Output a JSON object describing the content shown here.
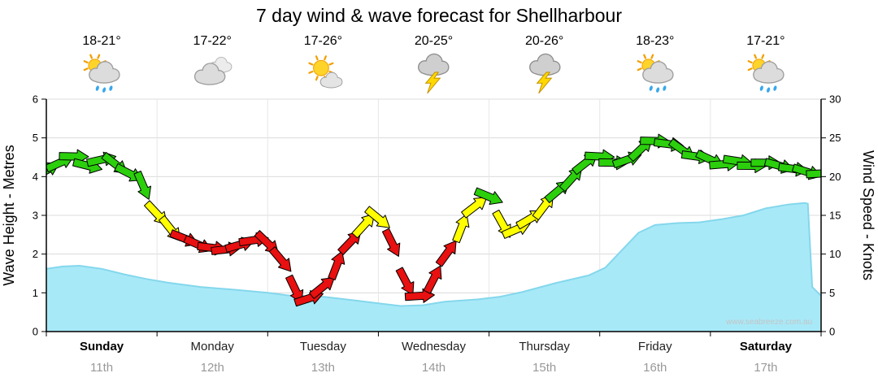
{
  "header": {
    "title": "7 day wind & wave forecast for Shellharbour"
  },
  "days": [
    {
      "temp": "18-21°",
      "icon": "sun-showers",
      "name": "Sunday",
      "date": "11th",
      "weekend": true
    },
    {
      "temp": "17-22°",
      "icon": "cloudy",
      "name": "Monday",
      "date": "12th",
      "weekend": false
    },
    {
      "temp": "17-26°",
      "icon": "sun-cloud",
      "name": "Tuesday",
      "date": "13th",
      "weekend": false
    },
    {
      "temp": "20-25°",
      "icon": "storm",
      "name": "Wednesday",
      "date": "14th",
      "weekend": false
    },
    {
      "temp": "20-26°",
      "icon": "storm",
      "name": "Thursday",
      "date": "15th",
      "weekend": false
    },
    {
      "temp": "18-23°",
      "icon": "sun-showers",
      "name": "Friday",
      "date": "16th",
      "weekend": false
    },
    {
      "temp": "17-21°",
      "icon": "sun-showers",
      "name": "Saturday",
      "date": "17th",
      "weekend": true
    }
  ],
  "watermark": "www.seabreeze.com.au",
  "chart_data": {
    "type": "mixed",
    "title": "7 day wind & wave forecast for Shellharbour",
    "x_axis": {
      "unit": "days",
      "range": [
        0,
        7
      ],
      "labels": [
        "Sunday",
        "Monday",
        "Tuesday",
        "Wednesday",
        "Thursday",
        "Friday",
        "Saturday"
      ],
      "sub_labels": [
        "11th",
        "12th",
        "13th",
        "14th",
        "15th",
        "16th",
        "17th"
      ]
    },
    "y_left": {
      "label": "Wave Height - Metres",
      "min": 0,
      "max": 6,
      "step": 1
    },
    "y_right": {
      "label": "Wind Speed - Knots",
      "min": 0,
      "max": 30,
      "step": 5
    },
    "grid": true,
    "wave_series": {
      "name": "Wave Height",
      "unit": "m",
      "type": "area",
      "color": "#a8e9f8",
      "edge_color": "#84d7ec",
      "points": [
        [
          0,
          1.62
        ],
        [
          0.15,
          1.68
        ],
        [
          0.3,
          1.7
        ],
        [
          0.5,
          1.62
        ],
        [
          0.7,
          1.48
        ],
        [
          0.9,
          1.36
        ],
        [
          1.1,
          1.26
        ],
        [
          1.4,
          1.15
        ],
        [
          1.7,
          1.08
        ],
        [
          2.0,
          1.0
        ],
        [
          2.2,
          0.93
        ],
        [
          2.5,
          0.9
        ],
        [
          2.8,
          0.8
        ],
        [
          3.0,
          0.73
        ],
        [
          3.2,
          0.66
        ],
        [
          3.4,
          0.68
        ],
        [
          3.6,
          0.77
        ],
        [
          3.9,
          0.83
        ],
        [
          4.1,
          0.9
        ],
        [
          4.3,
          1.02
        ],
        [
          4.6,
          1.25
        ],
        [
          4.9,
          1.45
        ],
        [
          5.05,
          1.65
        ],
        [
          5.2,
          2.1
        ],
        [
          5.35,
          2.55
        ],
        [
          5.5,
          2.75
        ],
        [
          5.7,
          2.8
        ],
        [
          5.9,
          2.82
        ],
        [
          6.1,
          2.9
        ],
        [
          6.3,
          3.0
        ],
        [
          6.5,
          3.18
        ],
        [
          6.7,
          3.28
        ],
        [
          6.85,
          3.32
        ],
        [
          6.88,
          3.3
        ],
        [
          6.92,
          1.15
        ],
        [
          7,
          0.92
        ]
      ]
    },
    "wind_series": {
      "name": "Wind Speed",
      "unit": "knots",
      "type": "arrows",
      "colors": {
        "red": "#e81010",
        "yellow": "#ffff00",
        "green": "#2bcf0c"
      },
      "thresholds": {
        "yellow_min": 12.5,
        "green_min": 16.5
      },
      "points": [
        [
          0,
          20.8
        ],
        [
          0.125,
          21.8
        ],
        [
          0.25,
          22.6
        ],
        [
          0.375,
          21.4
        ],
        [
          0.5,
          22.2
        ],
        [
          0.625,
          21.6
        ],
        [
          0.75,
          20.4
        ],
        [
          0.875,
          18.8
        ],
        [
          1,
          15.2
        ],
        [
          1.125,
          13.2
        ],
        [
          1.25,
          12.0
        ],
        [
          1.375,
          11.2
        ],
        [
          1.5,
          10.8
        ],
        [
          1.625,
          10.6
        ],
        [
          1.75,
          11.2
        ],
        [
          1.875,
          11.8
        ],
        [
          2,
          11.4
        ],
        [
          2.125,
          9.2
        ],
        [
          2.25,
          5.4
        ],
        [
          2.375,
          4.3
        ],
        [
          2.5,
          5.8
        ],
        [
          2.625,
          8.6
        ],
        [
          2.75,
          11.6
        ],
        [
          2.875,
          13.8
        ],
        [
          3,
          14.6
        ],
        [
          3.125,
          11.4
        ],
        [
          3.25,
          6.4
        ],
        [
          3.375,
          4.6
        ],
        [
          3.5,
          6.8
        ],
        [
          3.625,
          10.2
        ],
        [
          3.75,
          13.4
        ],
        [
          3.875,
          16.2
        ],
        [
          4,
          17.4
        ],
        [
          4.125,
          13.8
        ],
        [
          4.25,
          13.2
        ],
        [
          4.375,
          14.6
        ],
        [
          4.5,
          16.2
        ],
        [
          4.625,
          18.2
        ],
        [
          4.75,
          19.8
        ],
        [
          4.875,
          21.8
        ],
        [
          5,
          22.6
        ],
        [
          5.125,
          21.8
        ],
        [
          5.25,
          22.2
        ],
        [
          5.375,
          23.6
        ],
        [
          5.5,
          24.6
        ],
        [
          5.625,
          24.2
        ],
        [
          5.75,
          23.4
        ],
        [
          5.875,
          22.6
        ],
        [
          6,
          22.2
        ],
        [
          6.125,
          21.6
        ],
        [
          6.25,
          22.0
        ],
        [
          6.375,
          21.4
        ],
        [
          6.5,
          21.8
        ],
        [
          6.625,
          21.4
        ],
        [
          6.75,
          21.0
        ],
        [
          6.875,
          20.6
        ],
        [
          7,
          20.4
        ]
      ]
    }
  }
}
